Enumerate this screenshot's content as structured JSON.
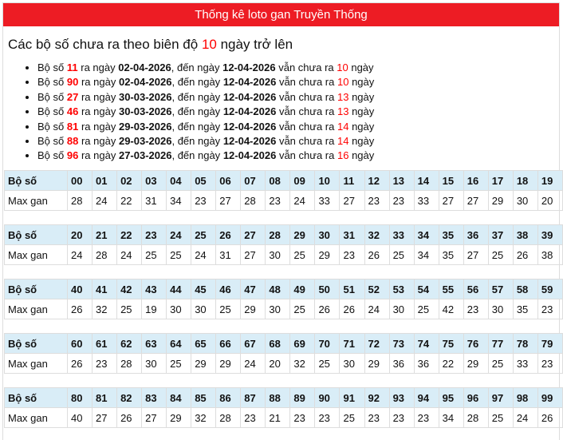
{
  "header": {
    "title": "Thống kê loto gan Truyền Thống"
  },
  "subtitle": {
    "prefix": "Các bộ số chưa ra theo biên độ",
    "value": "10",
    "suffix": "ngày trở lên"
  },
  "item_text": {
    "bo_so": "Bộ số",
    "ra_ngay": "ra ngày",
    "den_ngay": ", đến ngày",
    "van_chua_ra": "vẫn chưa ra",
    "ngay": "ngày"
  },
  "items": [
    {
      "num": "11",
      "from": "02-04-2026",
      "to": "12-04-2026",
      "days": "10"
    },
    {
      "num": "90",
      "from": "02-04-2026",
      "to": "12-04-2026",
      "days": "10"
    },
    {
      "num": "27",
      "from": "30-03-2026",
      "to": "12-04-2026",
      "days": "13"
    },
    {
      "num": "46",
      "from": "30-03-2026",
      "to": "12-04-2026",
      "days": "13"
    },
    {
      "num": "81",
      "from": "29-03-2026",
      "to": "12-04-2026",
      "days": "14"
    },
    {
      "num": "88",
      "from": "29-03-2026",
      "to": "12-04-2026",
      "days": "14"
    },
    {
      "num": "96",
      "from": "27-03-2026",
      "to": "12-04-2026",
      "days": "16"
    }
  ],
  "table": {
    "header_label": "Bộ số",
    "row_label": "Max gan",
    "blocks": [
      {
        "nums": [
          "00",
          "01",
          "02",
          "03",
          "04",
          "05",
          "06",
          "07",
          "08",
          "09",
          "10",
          "11",
          "12",
          "13",
          "14",
          "15",
          "16",
          "17",
          "18",
          "19"
        ],
        "vals": [
          "28",
          "24",
          "22",
          "31",
          "34",
          "23",
          "27",
          "28",
          "23",
          "24",
          "33",
          "27",
          "23",
          "23",
          "33",
          "27",
          "27",
          "29",
          "30",
          "20"
        ]
      },
      {
        "nums": [
          "20",
          "21",
          "22",
          "23",
          "24",
          "25",
          "26",
          "27",
          "28",
          "29",
          "30",
          "31",
          "32",
          "33",
          "34",
          "35",
          "36",
          "37",
          "38",
          "39"
        ],
        "vals": [
          "24",
          "28",
          "24",
          "25",
          "25",
          "24",
          "31",
          "27",
          "30",
          "25",
          "29",
          "23",
          "26",
          "25",
          "34",
          "35",
          "27",
          "25",
          "26",
          "38"
        ]
      },
      {
        "nums": [
          "40",
          "41",
          "42",
          "43",
          "44",
          "45",
          "46",
          "47",
          "48",
          "49",
          "50",
          "51",
          "52",
          "53",
          "54",
          "55",
          "56",
          "57",
          "58",
          "59"
        ],
        "vals": [
          "26",
          "32",
          "25",
          "19",
          "30",
          "30",
          "25",
          "29",
          "30",
          "25",
          "26",
          "26",
          "24",
          "30",
          "25",
          "42",
          "23",
          "30",
          "35",
          "23"
        ]
      },
      {
        "nums": [
          "60",
          "61",
          "62",
          "63",
          "64",
          "65",
          "66",
          "67",
          "68",
          "69",
          "70",
          "71",
          "72",
          "73",
          "74",
          "75",
          "76",
          "77",
          "78",
          "79"
        ],
        "vals": [
          "26",
          "23",
          "28",
          "30",
          "25",
          "29",
          "29",
          "24",
          "20",
          "32",
          "25",
          "30",
          "29",
          "36",
          "36",
          "22",
          "29",
          "25",
          "33",
          "23"
        ]
      },
      {
        "nums": [
          "80",
          "81",
          "82",
          "83",
          "84",
          "85",
          "86",
          "87",
          "88",
          "89",
          "90",
          "91",
          "92",
          "93",
          "94",
          "95",
          "96",
          "97",
          "98",
          "99"
        ],
        "vals": [
          "40",
          "27",
          "26",
          "27",
          "29",
          "32",
          "28",
          "23",
          "21",
          "23",
          "23",
          "25",
          "23",
          "23",
          "23",
          "34",
          "28",
          "25",
          "24",
          "26"
        ]
      }
    ]
  }
}
